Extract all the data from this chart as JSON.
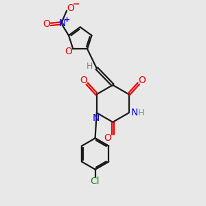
{
  "bg_color": "#e8e8e8",
  "bond_color": "#1a1a1a",
  "o_color": "#ee0000",
  "n_color": "#0000ee",
  "cl_color": "#228822",
  "h_color": "#808080",
  "lw": 1.6,
  "xlim": [
    0,
    10
  ],
  "ylim": [
    0,
    10
  ]
}
